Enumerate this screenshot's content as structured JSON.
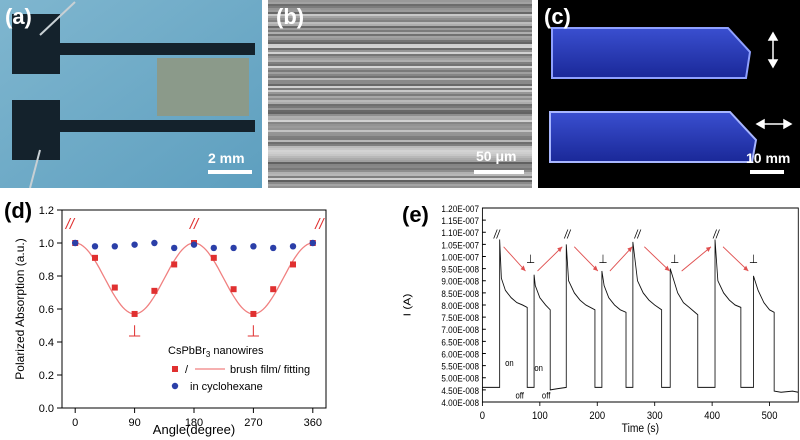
{
  "panels": {
    "a": {
      "label": "(a)",
      "scale": "2 mm"
    },
    "b": {
      "label": "(b)",
      "scale": "50 μm"
    },
    "c": {
      "label": "(c)",
      "scale": "10 mm"
    },
    "d": {
      "label": "(d)"
    },
    "e": {
      "label": "(e)"
    }
  },
  "chart_data": [
    {
      "type": "scatter",
      "panel": "d",
      "xlabel": "Angle(degree)",
      "ylabel": "Polarized Absorption (a.u.)",
      "xlim": [
        -20,
        380
      ],
      "ylim": [
        0.0,
        1.2
      ],
      "xticks": [
        0,
        90,
        180,
        270,
        360
      ],
      "yticks": [
        0.0,
        0.2,
        0.4,
        0.6,
        0.8,
        1.0,
        1.2
      ],
      "ytick_labels": [
        "0.0",
        "0.2",
        "0.4",
        "0.6",
        "0.8",
        "1.0",
        "1.2"
      ],
      "legend_title": "CsPbBr",
      "legend_title_sub": "3",
      "legend_title_rest": " nanowires",
      "series": [
        {
          "name": "brush film/ fitting",
          "legend_label_prefix": "/",
          "legend_label_text": "brush film/ fitting",
          "color": "#e03030",
          "marker": "square",
          "x": [
            0,
            30,
            60,
            90,
            120,
            150,
            180,
            210,
            240,
            270,
            300,
            330,
            360
          ],
          "y": [
            1.0,
            0.91,
            0.73,
            0.57,
            0.71,
            0.87,
            1.0,
            0.91,
            0.72,
            0.57,
            0.72,
            0.87,
            1.0
          ]
        },
        {
          "name": "in cyclohexane",
          "color": "#2b3fa8",
          "marker": "circle",
          "x": [
            0,
            30,
            60,
            90,
            120,
            150,
            180,
            210,
            240,
            270,
            300,
            330,
            360
          ],
          "y": [
            1.0,
            0.98,
            0.98,
            0.99,
            1.0,
            0.97,
            0.99,
            0.97,
            0.97,
            0.98,
            0.97,
            0.98,
            1.0
          ]
        }
      ],
      "annotations": [
        {
          "text": "//",
          "x": -8,
          "y": 1.12
        },
        {
          "text": "//",
          "x": 180,
          "y": 1.12
        },
        {
          "text": "//",
          "x": 370,
          "y": 1.12
        },
        {
          "text": "⊥",
          "x": 90,
          "y": 0.47
        },
        {
          "text": "⊥",
          "x": 270,
          "y": 0.47
        }
      ]
    },
    {
      "type": "line",
      "panel": "e",
      "xlabel": "Time (s)",
      "ylabel": "I (A)",
      "xlim": [
        0,
        550
      ],
      "ylim": [
        4e-08,
        1.2e-07
      ],
      "xticks": [
        0,
        100,
        200,
        300,
        400,
        500
      ],
      "yticks": [
        4e-08,
        4.5e-08,
        5e-08,
        5.5e-08,
        6e-08,
        6.5e-08,
        7e-08,
        7.5e-08,
        8e-08,
        8.5e-08,
        9e-08,
        9.5e-08,
        1e-07,
        1.05e-07,
        1.1e-07,
        1.15e-07,
        1.2e-07
      ],
      "ytick_labels": [
        "4.00E-008",
        "4.50E-008",
        "5.00E-008",
        "5.50E-008",
        "6.00E-008",
        "6.50E-008",
        "7.00E-008",
        "7.50E-008",
        "8.00E-008",
        "8.50E-008",
        "9.00E-008",
        "9.50E-008",
        "1.00E-007",
        "1.05E-007",
        "1.10E-007",
        "1.15E-007",
        "1.20E-007"
      ],
      "series": [
        {
          "color": "#111111",
          "x": [
            0,
            30,
            30,
            33,
            40,
            50,
            60,
            70,
            78,
            78,
            90,
            90,
            92,
            100,
            110,
            118,
            118,
            130,
            146,
            146,
            150,
            160,
            170,
            180,
            196,
            196,
            208,
            208,
            212,
            220,
            230,
            240,
            250,
            250,
            262,
            262,
            270,
            280,
            290,
            300,
            312,
            312,
            327,
            327,
            340,
            350,
            360,
            370,
            375,
            375,
            387,
            387,
            405,
            405,
            410,
            420,
            430,
            440,
            450,
            450,
            460,
            460,
            472,
            472,
            480,
            490,
            500,
            508,
            508,
            520,
            540,
            550
          ],
          "y": [
            4.6e-08,
            4.6e-08,
            1.07e-07,
            9.1e-08,
            8.6e-08,
            8.3e-08,
            8.1e-08,
            8e-08,
            7.9e-08,
            4.6e-08,
            4.6e-08,
            9.25e-08,
            8.8e-08,
            8.3e-08,
            8e-08,
            7.8e-08,
            4.5e-08,
            4.55e-08,
            4.6e-08,
            1.05e-07,
            9e-08,
            8.5e-08,
            8.2e-08,
            8e-08,
            7.8e-08,
            4.6e-08,
            4.6e-08,
            9.4e-08,
            8.8e-08,
            8.3e-08,
            8e-08,
            7.8e-08,
            7.7e-08,
            4.6e-08,
            4.6e-08,
            1.06e-07,
            9e-08,
            8.5e-08,
            8.2e-08,
            8e-08,
            7.8e-08,
            4.6e-08,
            4.6e-08,
            9.5e-08,
            8.5e-08,
            8.1e-08,
            7.9e-08,
            7.7e-08,
            7.6e-08,
            4.6e-08,
            4.6e-08,
            4.6e-08,
            4.6e-08,
            1.07e-07,
            9e-08,
            8.5e-08,
            8.2e-08,
            8e-08,
            7.9e-08,
            4.6e-08,
            4.6e-08,
            4.6e-08,
            4.6e-08,
            9.2e-08,
            8.6e-08,
            8.1e-08,
            7.8e-08,
            7.7e-08,
            4.45e-08,
            4.4e-08,
            4.45e-08,
            4.4e-08
          ]
        }
      ],
      "arrows_color": "#e05050",
      "annotations": [
        {
          "text": "//",
          "x": 25,
          "y": 1.09e-07
        },
        {
          "text": "⊥",
          "x": 84,
          "y": 9.9e-08
        },
        {
          "text": "//",
          "x": 148,
          "y": 1.09e-07
        },
        {
          "text": "⊥",
          "x": 210,
          "y": 9.9e-08
        },
        {
          "text": "//",
          "x": 270,
          "y": 1.09e-07
        },
        {
          "text": "⊥",
          "x": 335,
          "y": 9.9e-08
        },
        {
          "text": "//",
          "x": 407,
          "y": 1.09e-07
        },
        {
          "text": "⊥",
          "x": 472,
          "y": 9.9e-08
        },
        {
          "text": "on",
          "x": 47,
          "y": 5.65e-08
        },
        {
          "text": "off",
          "x": 65,
          "y": 4.3e-08
        },
        {
          "text": "on",
          "x": 98,
          "y": 5.45e-08
        },
        {
          "text": "off",
          "x": 111,
          "y": 4.3e-08
        }
      ]
    }
  ]
}
